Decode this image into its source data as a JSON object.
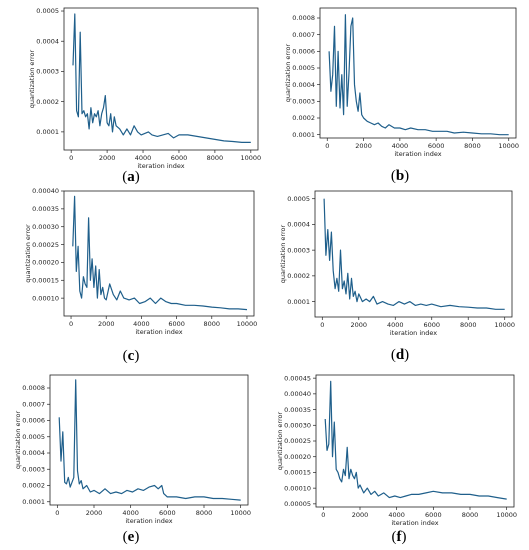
{
  "colors": {
    "line": "#1f5f8b",
    "axis": "#222222"
  },
  "chart_data": [
    {
      "type": "line",
      "panel": "a",
      "caption": "(a)",
      "xlabel": "iteration index",
      "ylabel": "quantization error",
      "xlim": [
        -400,
        10400
      ],
      "ylim": [
        4e-05,
        0.00051
      ],
      "xticks": [
        0,
        2000,
        4000,
        6000,
        8000,
        10000
      ],
      "xtick_labels": [
        "0",
        "2000",
        "4000",
        "6000",
        "8000",
        "10000"
      ],
      "yticks": [
        0.0001,
        0.0002,
        0.0003,
        0.0004,
        0.0005
      ],
      "ytick_labels": [
        "0.0001",
        "0.0002",
        "0.0003",
        "0.0004",
        "0.0005"
      ],
      "x": [
        100,
        200,
        300,
        400,
        500,
        600,
        700,
        800,
        900,
        1000,
        1100,
        1200,
        1300,
        1400,
        1500,
        1600,
        1700,
        1800,
        1900,
        2000,
        2100,
        2200,
        2300,
        2400,
        2500,
        2700,
        2900,
        3100,
        3300,
        3500,
        3700,
        3900,
        4100,
        4300,
        4500,
        4800,
        5100,
        5400,
        5700,
        6000,
        6500,
        7000,
        7500,
        8000,
        8500,
        9000,
        9500,
        10000
      ],
      "y": [
        0.00032,
        0.00049,
        0.00017,
        0.00015,
        0.00043,
        0.00016,
        0.00017,
        0.00015,
        0.00016,
        0.00011,
        0.00018,
        0.00013,
        0.00016,
        0.00015,
        0.00017,
        0.00012,
        0.00016,
        0.00018,
        0.00022,
        0.00013,
        0.00012,
        0.00016,
        0.0001,
        0.00015,
        0.00012,
        0.00011,
        9e-05,
        0.00011,
        9e-05,
        0.00012,
        0.0001,
        9e-05,
        9.5e-05,
        0.0001,
        9e-05,
        8.5e-05,
        9e-05,
        9.5e-05,
        8e-05,
        9e-05,
        9e-05,
        8.5e-05,
        8e-05,
        7.5e-05,
        7e-05,
        6.8e-05,
        6.5e-05,
        6.5e-05
      ]
    },
    {
      "type": "line",
      "panel": "b",
      "caption": "(b)",
      "xlabel": "iteration index",
      "ylabel": "quantization error",
      "xlim": [
        -400,
        10400
      ],
      "ylim": [
        8e-05,
        0.00086
      ],
      "xticks": [
        0,
        2000,
        4000,
        6000,
        8000,
        10000
      ],
      "xtick_labels": [
        "0",
        "2000",
        "4000",
        "6000",
        "8000",
        "10000"
      ],
      "yticks": [
        0.0001,
        0.0002,
        0.0003,
        0.0004,
        0.0005,
        0.0006,
        0.0007,
        0.0008
      ],
      "ytick_labels": [
        "0.0001",
        "0.0002",
        "0.0003",
        "0.0004",
        "0.0005",
        "0.0006",
        "0.0007",
        "0.0008"
      ],
      "x": [
        100,
        200,
        300,
        400,
        500,
        600,
        700,
        800,
        900,
        1000,
        1100,
        1200,
        1300,
        1400,
        1500,
        1600,
        1700,
        1800,
        1900,
        2000,
        2200,
        2400,
        2600,
        2800,
        3000,
        3200,
        3400,
        3700,
        4000,
        4300,
        4600,
        5000,
        5400,
        5800,
        6200,
        6600,
        7000,
        7500,
        8000,
        8500,
        9000,
        9500,
        10000
      ],
      "y": [
        0.0006,
        0.00036,
        0.00046,
        0.00075,
        0.00027,
        0.0006,
        0.00026,
        0.00046,
        0.00022,
        0.00082,
        0.00027,
        0.00047,
        0.00075,
        0.0008,
        0.0004,
        0.0003,
        0.00024,
        0.00035,
        0.00022,
        0.0002,
        0.00018,
        0.00017,
        0.00016,
        0.00017,
        0.00015,
        0.00014,
        0.00016,
        0.00014,
        0.00014,
        0.00013,
        0.00014,
        0.00013,
        0.00013,
        0.00012,
        0.00012,
        0.00012,
        0.00011,
        0.000115,
        0.00011,
        0.000105,
        0.000105,
        0.0001,
        0.0001
      ]
    },
    {
      "type": "line",
      "panel": "c",
      "caption": "(c)",
      "xlabel": "iteration index",
      "ylabel": "quantization error",
      "xlim": [
        -400,
        10400
      ],
      "ylim": [
        5e-05,
        0.0004
      ],
      "xticks": [
        0,
        2000,
        4000,
        6000,
        8000,
        10000
      ],
      "xtick_labels": [
        "0",
        "2000",
        "4000",
        "6000",
        "8000",
        "10000"
      ],
      "yticks": [
        0.0001,
        0.00015,
        0.0002,
        0.00025,
        0.0003,
        0.00035,
        0.0004
      ],
      "ytick_labels": [
        "0.00010",
        "0.00015",
        "0.00020",
        "0.00025",
        "0.00030",
        "0.00035",
        "0.00040"
      ],
      "x": [
        100,
        200,
        300,
        400,
        500,
        600,
        700,
        800,
        900,
        1000,
        1100,
        1200,
        1300,
        1400,
        1500,
        1600,
        1700,
        1800,
        1900,
        2000,
        2200,
        2400,
        2600,
        2800,
        3000,
        3300,
        3600,
        3900,
        4200,
        4500,
        4800,
        5100,
        5400,
        5700,
        6000,
        6500,
        7000,
        7500,
        8000,
        8500,
        9000,
        9500,
        10000
      ],
      "y": [
        0.000245,
        0.000385,
        0.000175,
        0.000245,
        0.00012,
        0.0001,
        0.00016,
        0.00014,
        0.00013,
        0.000325,
        0.00015,
        0.00021,
        0.00013,
        0.00019,
        0.0001,
        0.00018,
        0.00011,
        0.00013,
        0.0001,
        9.5e-05,
        0.00014,
        0.00011,
        9.5e-05,
        0.00012,
        0.0001,
        9.5e-05,
        0.0001,
        8.5e-05,
        9e-05,
        0.0001,
        8.5e-05,
        0.0001,
        9e-05,
        8.5e-05,
        8.5e-05,
        8e-05,
        8e-05,
        7.8e-05,
        7.5e-05,
        7.3e-05,
        7e-05,
        7e-05,
        6.8e-05
      ]
    },
    {
      "type": "line",
      "panel": "d",
      "caption": "(d)",
      "xlabel": "iteration index",
      "ylabel": "quantization error",
      "xlim": [
        -400,
        10400
      ],
      "ylim": [
        4e-05,
        0.00053
      ],
      "xticks": [
        0,
        2000,
        4000,
        6000,
        8000,
        10000
      ],
      "xtick_labels": [
        "0",
        "2000",
        "4000",
        "6000",
        "8000",
        "10000"
      ],
      "yticks": [
        0.0001,
        0.0002,
        0.0003,
        0.0004,
        0.0005
      ],
      "ytick_labels": [
        "0.0001",
        "0.0002",
        "0.0003",
        "0.0004",
        "0.0005"
      ],
      "x": [
        100,
        200,
        300,
        400,
        500,
        600,
        700,
        800,
        900,
        1000,
        1100,
        1200,
        1300,
        1400,
        1500,
        1600,
        1700,
        1800,
        1900,
        2000,
        2200,
        2400,
        2600,
        2800,
        3000,
        3300,
        3600,
        3900,
        4200,
        4500,
        4800,
        5100,
        5400,
        5700,
        6000,
        6500,
        7000,
        7500,
        8000,
        8500,
        9000,
        9500,
        10000
      ],
      "y": [
        0.0005,
        0.00028,
        0.00038,
        0.00026,
        0.00037,
        0.00022,
        0.00015,
        0.00019,
        0.00014,
        0.0003,
        0.00015,
        0.00018,
        0.00013,
        0.00021,
        0.00011,
        0.00019,
        0.00012,
        0.00014,
        0.0001,
        0.00013,
        0.0001,
        0.00011,
        0.0001,
        0.00012,
        9e-05,
        0.0001,
        9e-05,
        8.5e-05,
        0.0001,
        9e-05,
        0.0001,
        8.5e-05,
        9e-05,
        8.5e-05,
        9e-05,
        8e-05,
        8.5e-05,
        8e-05,
        7.8e-05,
        7.5e-05,
        7.5e-05,
        7e-05,
        7e-05
      ]
    },
    {
      "type": "line",
      "panel": "e",
      "caption": "(e)",
      "xlabel": "iteration index",
      "ylabel": "quantization error",
      "xlim": [
        -400,
        10400
      ],
      "ylim": [
        8e-05,
        0.00088
      ],
      "xticks": [
        0,
        2000,
        4000,
        6000,
        8000,
        10000
      ],
      "xtick_labels": [
        "0",
        "2000",
        "4000",
        "6000",
        "8000",
        "10000"
      ],
      "yticks": [
        0.0001,
        0.0002,
        0.0003,
        0.0004,
        0.0005,
        0.0006,
        0.0007,
        0.0008
      ],
      "ytick_labels": [
        "0.0001",
        "0.0002",
        "0.0003",
        "0.0004",
        "0.0005",
        "0.0006",
        "0.0007",
        "0.0008"
      ],
      "x": [
        100,
        200,
        300,
        400,
        500,
        600,
        700,
        800,
        900,
        1000,
        1100,
        1200,
        1300,
        1400,
        1600,
        1800,
        2000,
        2300,
        2600,
        2900,
        3200,
        3500,
        3800,
        4100,
        4400,
        4700,
        5000,
        5300,
        5500,
        5700,
        5800,
        6000,
        6500,
        7000,
        7500,
        8000,
        8500,
        9000,
        9500,
        10000
      ],
      "y": [
        0.00062,
        0.00035,
        0.00053,
        0.00022,
        0.00021,
        0.00025,
        0.00019,
        0.00022,
        0.00025,
        0.00085,
        0.00029,
        0.00021,
        0.00023,
        0.00018,
        0.0002,
        0.00016,
        0.00017,
        0.00015,
        0.00018,
        0.00015,
        0.00016,
        0.00015,
        0.00017,
        0.00016,
        0.00018,
        0.00017,
        0.00019,
        0.0002,
        0.00018,
        0.0002,
        0.00015,
        0.00013,
        0.00013,
        0.00012,
        0.00013,
        0.00013,
        0.00012,
        0.00012,
        0.000115,
        0.00011
      ]
    },
    {
      "type": "line",
      "panel": "f",
      "caption": "(f)",
      "xlabel": "iteration index",
      "ylabel": "quantization error",
      "xlim": [
        -400,
        10400
      ],
      "ylim": [
        4e-05,
        0.00046
      ],
      "xticks": [
        0,
        2000,
        4000,
        6000,
        8000,
        10000
      ],
      "xtick_labels": [
        "0",
        "2000",
        "4000",
        "6000",
        "8000",
        "10000"
      ],
      "yticks": [
        5e-05,
        0.0001,
        0.00015,
        0.0002,
        0.00025,
        0.0003,
        0.00035,
        0.0004,
        0.00045
      ],
      "ytick_labels": [
        "0.00005",
        "0.00010",
        "0.00015",
        "0.00020",
        "0.00025",
        "0.00030",
        "0.00035",
        "0.00040",
        "0.00045"
      ],
      "x": [
        100,
        200,
        300,
        400,
        500,
        600,
        700,
        800,
        900,
        1000,
        1100,
        1200,
        1300,
        1400,
        1500,
        1600,
        1700,
        1800,
        1900,
        2000,
        2200,
        2400,
        2600,
        2800,
        3000,
        3300,
        3600,
        3900,
        4200,
        4500,
        4800,
        5200,
        5600,
        6000,
        6500,
        7000,
        7500,
        8000,
        8500,
        9000,
        9500,
        10000
      ],
      "y": [
        0.00032,
        0.00022,
        0.00024,
        0.00044,
        0.0002,
        0.00031,
        0.00016,
        0.00015,
        0.00013,
        0.00012,
        0.00016,
        0.00014,
        0.00023,
        0.00013,
        0.00016,
        0.00014,
        0.00013,
        0.00015,
        0.0001,
        0.00011,
        8.5e-05,
        0.0001,
        8e-05,
        9e-05,
        7.5e-05,
        8.5e-05,
        7e-05,
        7.5e-05,
        7e-05,
        7.5e-05,
        8e-05,
        8e-05,
        8.5e-05,
        9e-05,
        8.5e-05,
        8.5e-05,
        8e-05,
        8e-05,
        7.5e-05,
        7.5e-05,
        7e-05,
        6.5e-05
      ]
    }
  ]
}
